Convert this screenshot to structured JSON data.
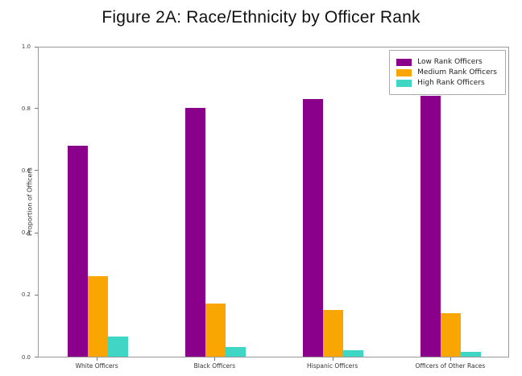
{
  "chart_data": {
    "type": "bar",
    "title": "Figure 2A: Race/Ethnicity by Officer Rank",
    "xlabel": "",
    "ylabel": "Proportion of Officers",
    "categories": [
      "White Officers",
      "Black Officers",
      "Hispanic Officers",
      "Officers of Other Races"
    ],
    "series": [
      {
        "name": "Low Rank Officers",
        "color": "#8B008B",
        "values": [
          0.68,
          0.8,
          0.83,
          0.84
        ]
      },
      {
        "name": "Medium Rank Officers",
        "color": "#F9A602",
        "values": [
          0.26,
          0.17,
          0.15,
          0.14
        ]
      },
      {
        "name": "High Rank Officers",
        "color": "#40D6C5",
        "values": [
          0.065,
          0.03,
          0.02,
          0.015
        ]
      }
    ],
    "ylim": [
      0.0,
      1.0
    ],
    "yticks": [
      0.0,
      0.2,
      0.4,
      0.6,
      0.8,
      1.0
    ],
    "legend_position": "upper right",
    "grid": false,
    "background_color": "#ffffff",
    "spine_color": "#999999"
  }
}
